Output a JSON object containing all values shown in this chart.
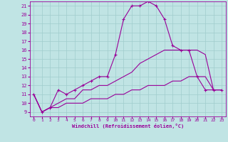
{
  "title": "",
  "xlabel": "Windchill (Refroidissement éolien,°C)",
  "ylabel": "",
  "xlim": [
    -0.5,
    23.5
  ],
  "ylim": [
    8.5,
    21.5
  ],
  "yticks": [
    9,
    10,
    11,
    12,
    13,
    14,
    15,
    16,
    17,
    18,
    19,
    20,
    21
  ],
  "xticks": [
    0,
    1,
    2,
    3,
    4,
    5,
    6,
    7,
    8,
    9,
    10,
    11,
    12,
    13,
    14,
    15,
    16,
    17,
    18,
    19,
    20,
    21,
    22,
    23
  ],
  "line_color": "#990099",
  "bg_color": "#c0e4e4",
  "grid_color": "#a0cccc",
  "line1_x": [
    0,
    1,
    2,
    3,
    4,
    5,
    6,
    7,
    8,
    9,
    10,
    11,
    12,
    13,
    14,
    15,
    16,
    17,
    18,
    19,
    20,
    21,
    22,
    23
  ],
  "line1_y": [
    11,
    9,
    9.5,
    11.5,
    11,
    11.5,
    12,
    12.5,
    13,
    13,
    15.5,
    19.5,
    21,
    21,
    21.5,
    21,
    19.5,
    16.5,
    16,
    16,
    13,
    11.5,
    11.5,
    11.5
  ],
  "line2_x": [
    0,
    1,
    2,
    3,
    4,
    5,
    6,
    7,
    8,
    9,
    10,
    11,
    12,
    13,
    14,
    15,
    16,
    17,
    18,
    19,
    20,
    21,
    22,
    23
  ],
  "line2_y": [
    11,
    9,
    9.5,
    10,
    10.5,
    10.5,
    11.5,
    11.5,
    12,
    12,
    12.5,
    13,
    13.5,
    14.5,
    15,
    15.5,
    16,
    16,
    16,
    16,
    16,
    15.5,
    11.5,
    11.5
  ],
  "line3_x": [
    0,
    1,
    2,
    3,
    4,
    5,
    6,
    7,
    8,
    9,
    10,
    11,
    12,
    13,
    14,
    15,
    16,
    17,
    18,
    19,
    20,
    21,
    22,
    23
  ],
  "line3_y": [
    11,
    9,
    9.5,
    9.5,
    10,
    10,
    10,
    10.5,
    10.5,
    10.5,
    11,
    11,
    11.5,
    11.5,
    12,
    12,
    12,
    12.5,
    12.5,
    13,
    13,
    13,
    11.5,
    11.5
  ]
}
